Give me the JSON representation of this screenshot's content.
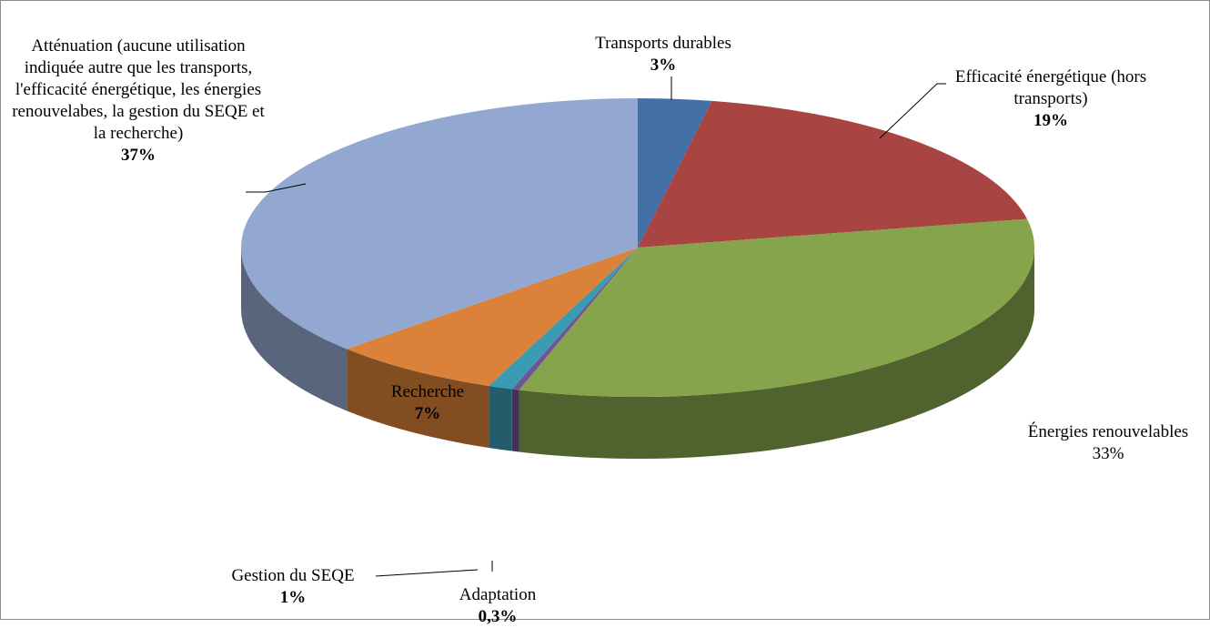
{
  "chart_data": {
    "type": "pie",
    "categories": [
      "Transports durables",
      "Efficacité énergétique (hors transports)",
      "Énergies renouvelables",
      "Adaptation",
      "Gestion du SEQE",
      "Recherche",
      "Atténuation (aucune utilisation indiquée autre que les transports, l'efficacité énergétique, les énergies renouvelabes, la gestion du SEQE et la recherche)"
    ],
    "values": [
      3,
      19,
      33,
      0.3,
      1,
      7,
      37
    ],
    "value_labels": [
      "3%",
      "19%",
      "33%",
      "0,3%",
      "1%",
      "7%",
      "37%"
    ],
    "colors": [
      "#4470a8",
      "#a84442",
      "#86a44b",
      "#6f5595",
      "#3b9bb2",
      "#db8139",
      "#93a8d0"
    ]
  }
}
